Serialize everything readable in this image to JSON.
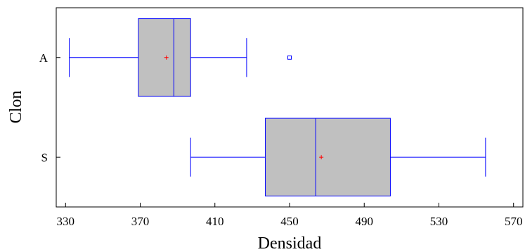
{
  "chart_data": {
    "type": "boxplot",
    "orientation": "horizontal",
    "xlabel": "Densidad",
    "ylabel": "Clon",
    "xlim": [
      325,
      575
    ],
    "xticks": [
      330,
      370,
      410,
      450,
      490,
      530,
      570
    ],
    "categories": [
      "A",
      "S"
    ],
    "boxes": [
      {
        "category": "A",
        "whisker_low": 332,
        "q1": 369,
        "median": 388,
        "q3": 397,
        "whisker_high": 427,
        "mean": 384,
        "outliers": [
          450
        ]
      },
      {
        "category": "S",
        "whisker_low": 397,
        "q1": 437,
        "median": 464,
        "q3": 504,
        "whisker_high": 555,
        "mean": 467,
        "outliers": []
      }
    ],
    "colors": {
      "box_fill": "#c0c0c0",
      "box_stroke": "#0000ff",
      "mean_marker": "#ff0000",
      "axis": "#000000"
    }
  }
}
